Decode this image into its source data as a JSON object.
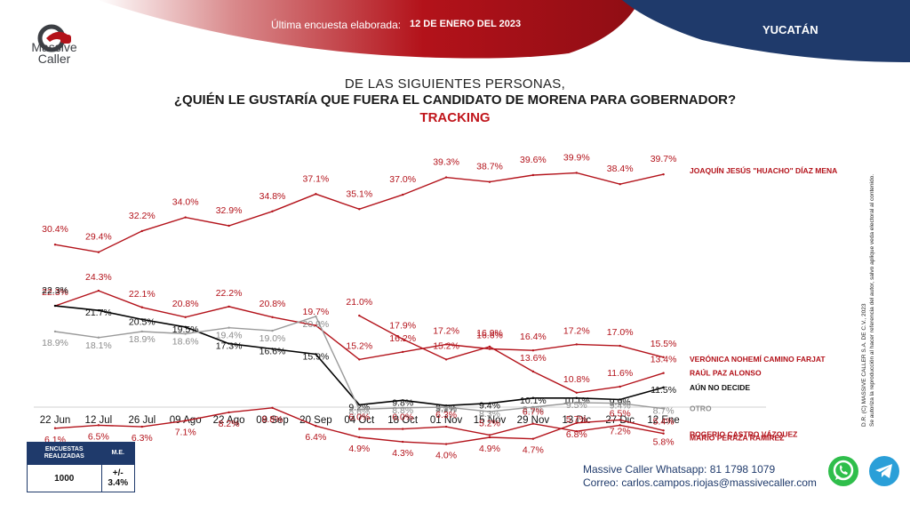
{
  "header": {
    "logo_line1": "Massive",
    "logo_line2": "Caller",
    "survey_label": "Última encuesta elaborada:",
    "survey_date": "12 DE ENERO DEL 2023",
    "state": "YUCATÁN"
  },
  "titles": {
    "line1": "DE LAS SIGUIENTES  PERSONAS,",
    "line2": "¿QUIÉN LE GUSTARÍA QUE FUERA EL CANDIDATO  DE MORENA PARA GOBERNADOR?",
    "line3": "TRACKING"
  },
  "chart_data": {
    "type": "line",
    "categories": [
      "22 Jun",
      "12 Jul",
      "26 Jul",
      "09 Ago",
      "22 Ago",
      "09 Sep",
      "20 Sep",
      "04 Oct",
      "18 Oct",
      "01 Nov",
      "15 Nov",
      "29 Nov",
      "13 Dic",
      "27 Dic",
      "12 Ene"
    ],
    "ylim": [
      0,
      45
    ],
    "grid": false,
    "legend": "end-of-line labels, right",
    "series": [
      {
        "name": "JOAQUÍN JESÚS \"HUACHO\" DÍAZ MENA",
        "color": "#b3121a",
        "values": [
          30.4,
          29.4,
          32.2,
          34.0,
          32.9,
          34.8,
          37.1,
          35.1,
          37.0,
          39.3,
          38.7,
          39.6,
          39.9,
          38.4,
          39.7
        ],
        "labels": [
          "30.4%",
          "29.4%",
          "32.2%",
          "34.0%",
          "32.9%",
          "34.8%",
          "37.1%",
          "35.1%",
          "37.0%",
          "39.3%",
          "38.7%",
          "39.6%",
          "39.9%",
          "38.4%",
          "39.7%"
        ]
      },
      {
        "name": "VERÓNICA NOHEMÍ CAMINO FARJAT",
        "color": "#b3121a",
        "values": [
          22.3,
          24.3,
          22.1,
          20.8,
          22.2,
          20.8,
          19.7,
          15.2,
          16.2,
          17.2,
          16.6,
          16.4,
          17.2,
          17.0,
          15.5
        ],
        "labels": [
          "22.3%",
          "24.3%",
          "22.1%",
          "20.8%",
          "22.2%",
          "20.8%",
          "19.7%",
          "15.2%",
          "16.2%",
          "17.2%",
          "16.6%",
          "16.4%",
          "17.2%",
          "17.0%",
          "15.5%"
        ]
      },
      {
        "name": "RAÚL PAZ ALONSO",
        "color": "#b3121a",
        "values": [
          null,
          null,
          null,
          null,
          null,
          null,
          null,
          21.0,
          17.9,
          15.2,
          16.9,
          13.6,
          10.8,
          11.6,
          13.4
        ],
        "labels": [
          "",
          "",
          "",
          "",
          "",
          "",
          "",
          "21.0%",
          "17.9%",
          "15.2%",
          "16.9%",
          "13.6%",
          "10.8%",
          "11.6%",
          "13.4%"
        ]
      },
      {
        "name": "AÚN NO DECIDE",
        "color": "#000000",
        "values": [
          22.3,
          21.7,
          20.5,
          19.5,
          17.3,
          16.6,
          15.9,
          9.2,
          9.8,
          9.1,
          9.4,
          10.1,
          10.1,
          9.9,
          11.5
        ],
        "labels": [
          "22.3%",
          "21.7%",
          "20.5%",
          "19.5%",
          "17.3%",
          "16.6%",
          "15.9%",
          "9.2%",
          "9.8%",
          "9.1%",
          "9.4%",
          "10.1%",
          "10.1%",
          "9.9%",
          "11.5%"
        ]
      },
      {
        "name": "OTRO",
        "color": "#9a9a9a",
        "values": [
          18.9,
          18.1,
          18.9,
          18.6,
          19.4,
          19.0,
          20.9,
          8.6,
          8.8,
          8.9,
          8.3,
          8.9,
          9.5,
          9.4,
          8.7
        ],
        "labels": [
          "18.9%",
          "18.1%",
          "18.9%",
          "18.6%",
          "19.4%",
          "19.0%",
          "20.9%",
          "8.6%",
          "8.8%",
          "8.9%",
          "8.3%",
          "8.9%",
          "9.5%",
          "9.4%",
          "8.7%"
        ]
      },
      {
        "name": "ROGERIO CASTRO VÁZQUEZ",
        "color": "#b3121a",
        "values": [
          6.1,
          6.5,
          6.3,
          7.1,
          8.2,
          8.8,
          6.4,
          4.9,
          4.3,
          4.0,
          4.9,
          4.7,
          6.8,
          7.2,
          5.8
        ],
        "labels": [
          "6.1%",
          "6.5%",
          "6.3%",
          "7.1%",
          "8.2%",
          "8.8%",
          "6.4%",
          "4.9%",
          "4.3%",
          "4.0%",
          "4.9%",
          "4.7%",
          "6.8%",
          "7.2%",
          "5.8%"
        ]
      },
      {
        "name": "MARIO PERAZA RAMÍREZ",
        "color": "#b3121a",
        "values": [
          null,
          null,
          null,
          null,
          null,
          null,
          null,
          6.0,
          6.0,
          6.3,
          5.2,
          6.7,
          5.7,
          6.5,
          5.4
        ],
        "labels": [
          "",
          "",
          "",
          "",
          "",
          "",
          "",
          "6.0%",
          "6.0%",
          "6.3%",
          "5.2%",
          "6.7%",
          "5.7%",
          "6.5%",
          "5.4%"
        ]
      }
    ]
  },
  "table": {
    "head_left": "ENCUESTAS REALIZADAS",
    "head_right": "M.E.",
    "val_left": "1000",
    "val_right": "+/- 3.4%"
  },
  "contact": {
    "whatsapp": "Massive Caller Whatsapp: 81 1798 1079",
    "email": "Correo: carlos.campos.riojas@massivecaller.com"
  },
  "side_note": {
    "line1": "D.R. (C) MASSIVE CALLER S.A. DE C.V., 2023",
    "line2": "Se autoriza la reproducción al hacer referencia del autor, salvo aplique veda electoral al contenido."
  },
  "icons": {
    "whatsapp": "whatsapp-icon",
    "telegram": "telegram-icon",
    "logo": "massive-caller-logo"
  },
  "colors": {
    "brand_red": "#b3121a",
    "brand_navy": "#1f3a6b"
  }
}
